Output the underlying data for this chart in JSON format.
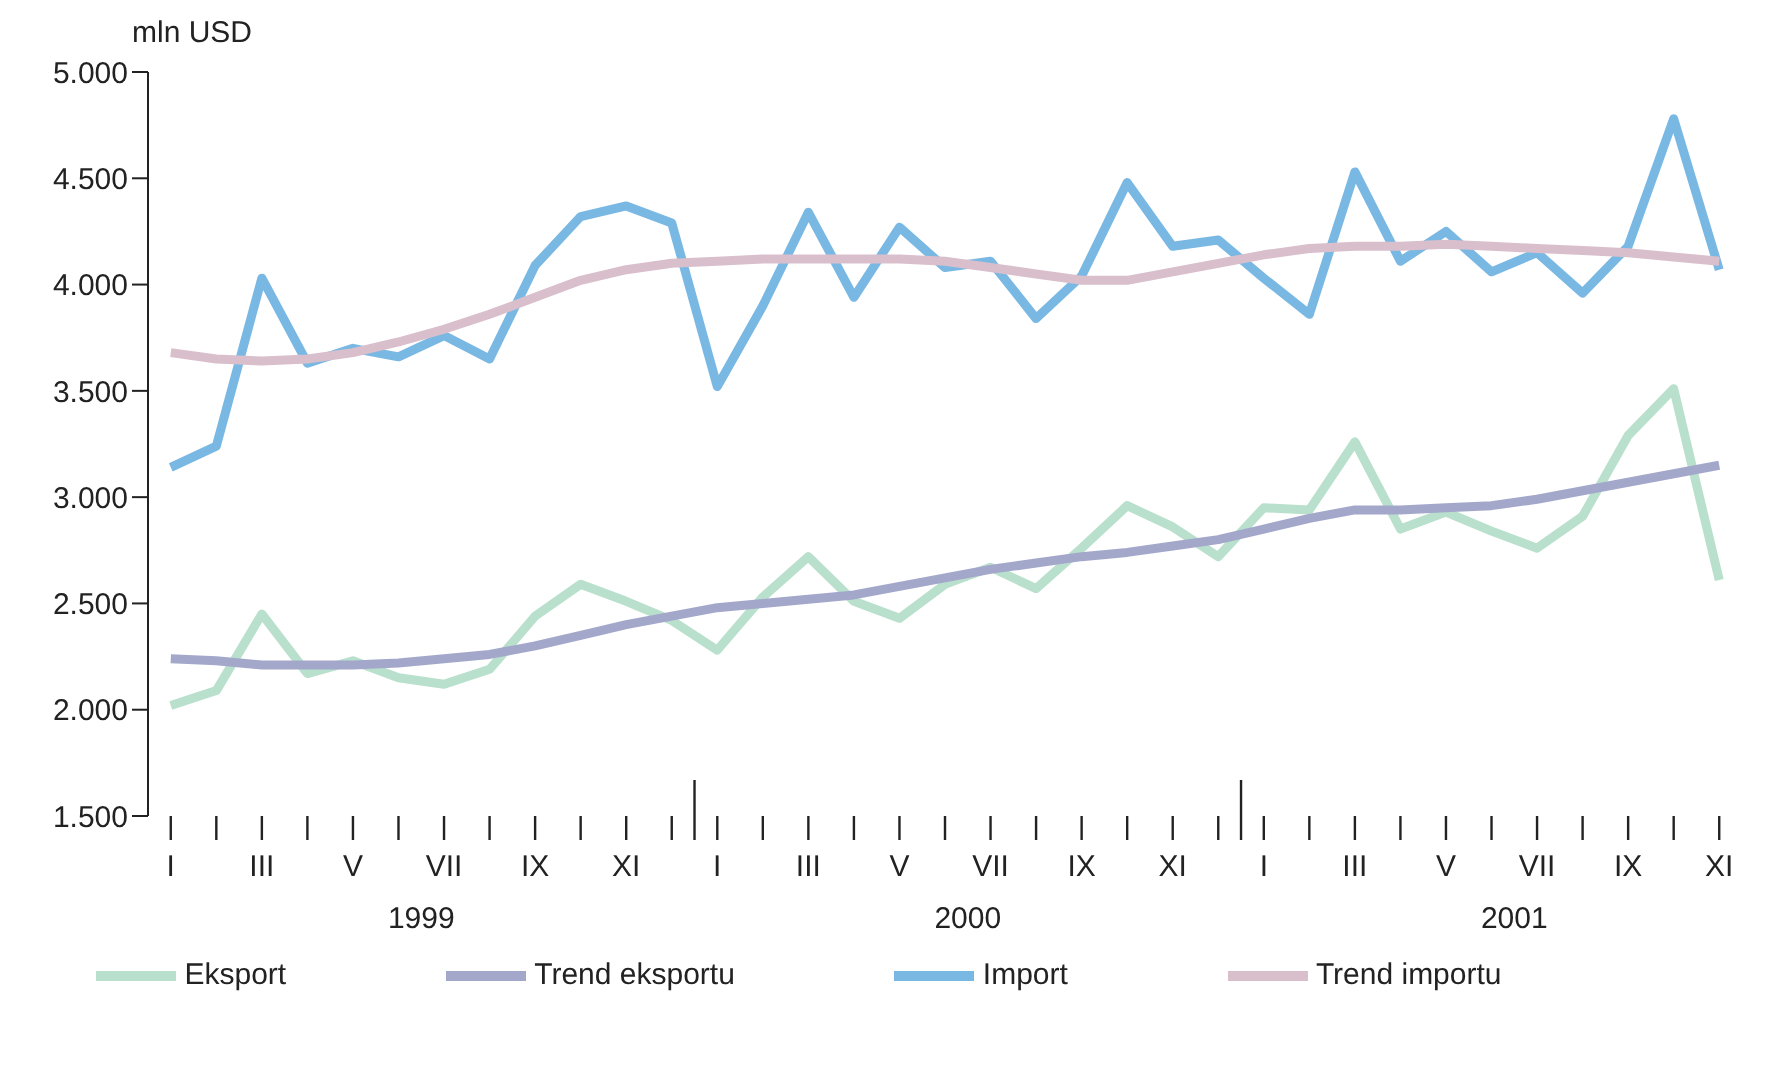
{
  "chart_data": {
    "type": "line",
    "ylabel": "mln USD",
    "categories": [
      "I",
      null,
      "III",
      null,
      "V",
      null,
      "VII",
      null,
      "IX",
      null,
      "XI",
      null,
      "I",
      null,
      "III",
      null,
      "V",
      null,
      "VII",
      null,
      "IX",
      null,
      "XI",
      null,
      "I",
      null,
      "III",
      null,
      "V",
      null,
      "VII",
      null,
      "IX",
      null,
      "XI"
    ],
    "annotations": [
      "1999",
      "2000",
      "2001"
    ],
    "series": [
      {
        "name": "Eksport",
        "color": "#b9e0cc",
        "values": [
          2020,
          2090,
          2450,
          2170,
          2230,
          2150,
          2120,
          2190,
          2440,
          2590,
          2510,
          2420,
          2280,
          2530,
          2720,
          2510,
          2430,
          2590,
          2670,
          2570,
          2760,
          2960,
          2860,
          2720,
          2950,
          2940,
          3260,
          2850,
          2930,
          2840,
          2760,
          2910,
          3290,
          3510,
          2610
        ]
      },
      {
        "name": "Trend eksportu",
        "color": "#a3a8cb",
        "values": [
          2240,
          2230,
          2210,
          2210,
          2210,
          2220,
          2240,
          2260,
          2300,
          2350,
          2400,
          2440,
          2480,
          2500,
          2520,
          2540,
          2580,
          2620,
          2660,
          2690,
          2720,
          2740,
          2770,
          2800,
          2850,
          2900,
          2940,
          2940,
          2950,
          2960,
          2990,
          3030,
          3070,
          3110,
          3150
        ]
      },
      {
        "name": "Import",
        "color": "#7ab8e4",
        "values": [
          3140,
          3240,
          4030,
          3630,
          3700,
          3660,
          3760,
          3650,
          4090,
          4320,
          4370,
          4290,
          3520,
          3900,
          4340,
          3940,
          4270,
          4080,
          4110,
          3840,
          4040,
          4480,
          4180,
          4210,
          4030,
          3860,
          4530,
          4110,
          4250,
          4060,
          4150,
          3960,
          4180,
          4780,
          4070
        ]
      },
      {
        "name": "Trend importu",
        "color": "#d9bfcc",
        "values": [
          3680,
          3650,
          3640,
          3650,
          3680,
          3730,
          3790,
          3860,
          3940,
          4020,
          4070,
          4100,
          4110,
          4120,
          4120,
          4120,
          4120,
          4110,
          4080,
          4050,
          4020,
          4020,
          4060,
          4100,
          4140,
          4170,
          4180,
          4180,
          4190,
          4180,
          4170,
          4160,
          4150,
          4130,
          4110
        ]
      }
    ],
    "ylim": [
      1500,
      5000
    ],
    "yticks": [
      {
        "value": 1500,
        "label": "1.500"
      },
      {
        "value": 2000,
        "label": "2.000"
      },
      {
        "value": 2500,
        "label": "2.500"
      },
      {
        "value": 3000,
        "label": "3.000"
      },
      {
        "value": 3500,
        "label": "3.500"
      },
      {
        "value": 4000,
        "label": "4.000"
      },
      {
        "value": 4500,
        "label": "4.500"
      },
      {
        "value": 5000,
        "label": "5.000"
      }
    ],
    "grid": false,
    "legend": "bottom",
    "marker": "none",
    "line_style": "solid"
  }
}
